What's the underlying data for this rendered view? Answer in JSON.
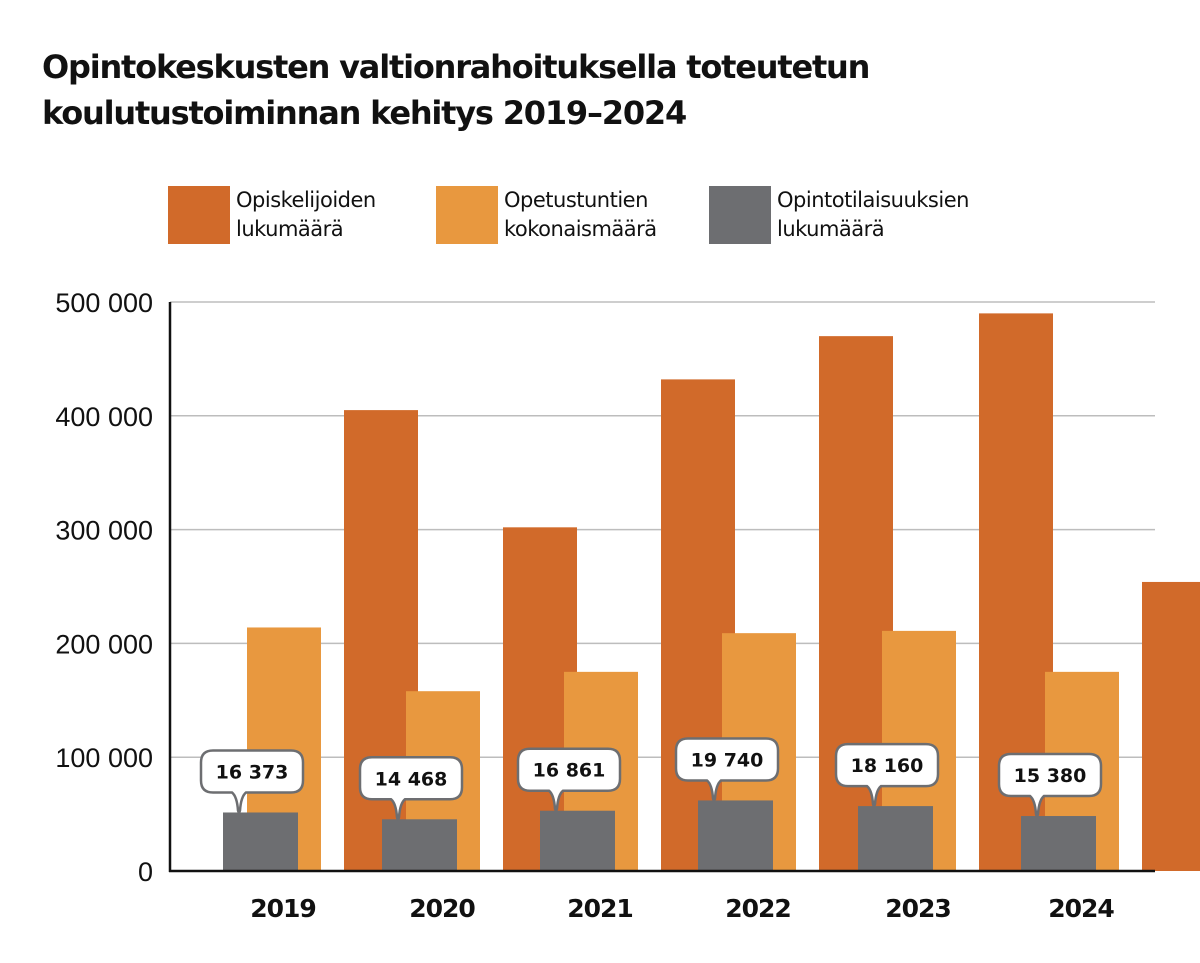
{
  "title": {
    "line1": "Opintokeskusten valtionrahoituksella toteutetun",
    "line2": "koulutustoiminnan kehitys 2019–2024"
  },
  "legend": [
    {
      "line1": "Opiskelijoiden",
      "line2": "lukumäärä",
      "color": "#d16a2a"
    },
    {
      "line1": "Opetustuntien",
      "line2": "kokonaismäärä",
      "color": "#e8983f"
    },
    {
      "line1": "Opintotilaisuuksien",
      "line2": "lukumäärä",
      "color": "#6d6e71"
    }
  ],
  "chart_data": {
    "type": "bar",
    "title": "Opintokeskusten valtionrahoituksella toteutetun koulutustoiminnan kehitys 2019–2024",
    "xlabel": "",
    "ylabel": "",
    "categories": [
      "2019",
      "2020",
      "2021",
      "2022",
      "2023",
      "2024"
    ],
    "ylim": [
      0,
      500000
    ],
    "yticks": [
      0,
      100000,
      200000,
      300000,
      400000,
      500000
    ],
    "ytick_labels": [
      "0",
      "100 000",
      "200 000",
      "300 000",
      "400 000",
      "500 000"
    ],
    "grid": true,
    "legend_position": "top",
    "series": [
      {
        "name": "Opiskelijoiden lukumäärä",
        "color": "#d16a2a",
        "values": [
          405000,
          302000,
          432000,
          470000,
          490000,
          254000
        ]
      },
      {
        "name": "Opetustuntien kokonaismäärä",
        "color": "#e8983f",
        "values": [
          214000,
          158000,
          175000,
          209000,
          211000,
          175000
        ]
      },
      {
        "name": "Opintotilaisuuksien lukumäärä",
        "color": "#6d6e71",
        "values": [
          16373,
          14468,
          16861,
          19740,
          18160,
          15380
        ],
        "data_labels": [
          "16 373",
          "14 468",
          "16 861",
          "19 740",
          "18 160",
          "15 380"
        ],
        "note": "drawn on a separate visual scale (bar heights not proportional to main axis)"
      }
    ]
  }
}
